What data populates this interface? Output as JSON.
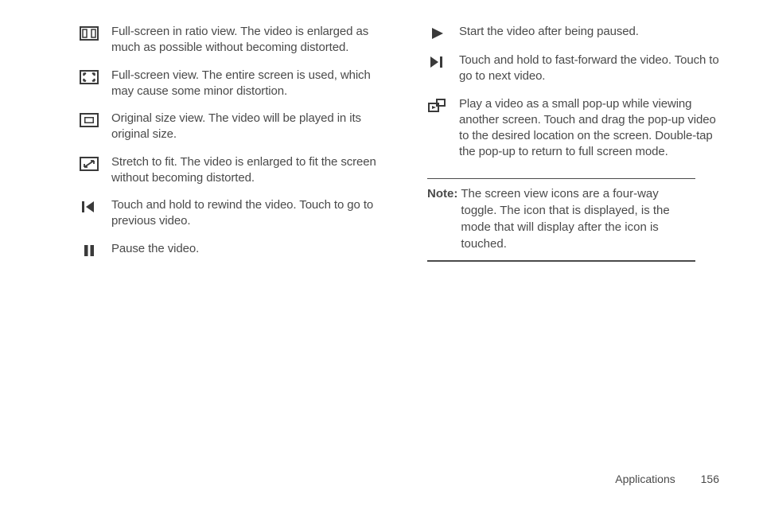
{
  "left_items": [
    {
      "icon": "ratio",
      "text": "Full-screen in ratio view. The video is enlarged as much as possible without becoming distorted."
    },
    {
      "icon": "full",
      "text": "Full-screen view. The entire screen is used, which may cause some minor distortion."
    },
    {
      "icon": "original",
      "text": "Original size view. The video will be played in its original size."
    },
    {
      "icon": "stretch",
      "text": "Stretch to fit. The video is enlarged to fit the screen without becoming distorted."
    },
    {
      "icon": "rewind",
      "text": "Touch and hold to rewind the video. Touch to go to previous video."
    },
    {
      "icon": "pause",
      "text": "Pause the video."
    }
  ],
  "right_items": [
    {
      "icon": "play",
      "text": "Start the video after being paused."
    },
    {
      "icon": "forward",
      "text": "Touch and hold to fast-forward the video. Touch to go to next video."
    },
    {
      "icon": "popup",
      "text": "Play a video as a small pop-up while viewing another screen. Touch and drag the pop-up video to the desired location on the screen. Double-tap the pop-up to return to full screen mode."
    }
  ],
  "note": {
    "label": "Note:",
    "body": "The screen view icons are a four-way toggle. The icon that is displayed, is the mode that will display after the icon is touched."
  },
  "footer": {
    "section": "Applications",
    "page": "156"
  },
  "colors": {
    "stroke": "#3a3a3a",
    "fill": "#3a3a3a"
  }
}
